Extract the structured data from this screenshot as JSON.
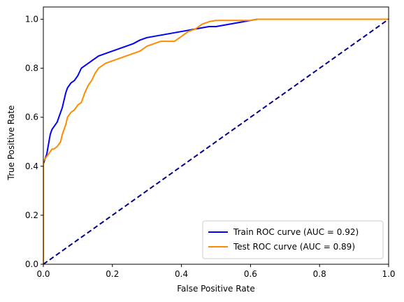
{
  "chart_data": {
    "type": "line",
    "title": "",
    "xlabel": "False Positive Rate",
    "ylabel": "True Positive Rate",
    "xlim": [
      0.0,
      1.0
    ],
    "ylim": [
      0.0,
      1.05
    ],
    "xticks": [
      "0.0",
      "0.2",
      "0.4",
      "0.6",
      "0.8",
      "1.0"
    ],
    "yticks": [
      "0.0",
      "0.2",
      "0.4",
      "0.6",
      "0.8",
      "1.0"
    ],
    "grid": false,
    "legend_position": "lower-right",
    "series": [
      {
        "name": "Train ROC curve (AUC = 0.92)",
        "color": "#0000ff",
        "x": [
          0.0,
          0.0,
          0.005,
          0.01,
          0.015,
          0.02,
          0.025,
          0.03,
          0.035,
          0.04,
          0.045,
          0.05,
          0.055,
          0.06,
          0.065,
          0.07,
          0.075,
          0.08,
          0.09,
          0.1,
          0.11,
          0.12,
          0.13,
          0.14,
          0.15,
          0.16,
          0.17,
          0.18,
          0.2,
          0.22,
          0.24,
          0.26,
          0.28,
          0.3,
          0.32,
          0.34,
          0.36,
          0.38,
          0.4,
          0.42,
          0.44,
          0.46,
          0.48,
          0.5,
          0.52,
          0.54,
          0.56,
          0.58,
          0.6,
          0.62,
          0.64,
          0.7,
          0.8,
          0.9,
          1.0
        ],
        "y": [
          0.0,
          0.41,
          0.43,
          0.45,
          0.49,
          0.53,
          0.55,
          0.56,
          0.57,
          0.58,
          0.6,
          0.62,
          0.64,
          0.67,
          0.7,
          0.72,
          0.73,
          0.74,
          0.75,
          0.77,
          0.8,
          0.81,
          0.82,
          0.83,
          0.84,
          0.85,
          0.855,
          0.86,
          0.87,
          0.88,
          0.89,
          0.9,
          0.915,
          0.925,
          0.93,
          0.935,
          0.94,
          0.945,
          0.95,
          0.955,
          0.96,
          0.965,
          0.97,
          0.97,
          0.975,
          0.98,
          0.985,
          0.99,
          0.995,
          1.0,
          1.0,
          1.0,
          1.0,
          1.0,
          1.0
        ]
      },
      {
        "name": "Test ROC curve (AUC = 0.89)",
        "color": "#ff8c00",
        "x": [
          0.0,
          0.0,
          0.005,
          0.01,
          0.015,
          0.02,
          0.025,
          0.03,
          0.04,
          0.05,
          0.055,
          0.06,
          0.065,
          0.07,
          0.08,
          0.09,
          0.1,
          0.11,
          0.12,
          0.13,
          0.14,
          0.15,
          0.16,
          0.17,
          0.18,
          0.2,
          0.22,
          0.24,
          0.26,
          0.28,
          0.3,
          0.32,
          0.34,
          0.36,
          0.38,
          0.4,
          0.42,
          0.44,
          0.46,
          0.48,
          0.5,
          0.52,
          0.54,
          0.56,
          0.58,
          0.6,
          0.62,
          0.64,
          0.7,
          0.8,
          0.9,
          1.0
        ],
        "y": [
          0.0,
          0.42,
          0.43,
          0.44,
          0.45,
          0.46,
          0.47,
          0.47,
          0.48,
          0.5,
          0.53,
          0.55,
          0.57,
          0.6,
          0.62,
          0.63,
          0.65,
          0.66,
          0.7,
          0.73,
          0.75,
          0.78,
          0.8,
          0.81,
          0.82,
          0.83,
          0.84,
          0.85,
          0.86,
          0.87,
          0.89,
          0.9,
          0.91,
          0.91,
          0.91,
          0.93,
          0.95,
          0.96,
          0.98,
          0.99,
          0.995,
          0.995,
          0.995,
          0.995,
          0.995,
          0.995,
          1.0,
          1.0,
          1.0,
          1.0,
          1.0,
          1.0
        ]
      },
      {
        "name": "",
        "color": "#00008b",
        "dashed": true,
        "x": [
          0.0,
          1.0
        ],
        "y": [
          0.0,
          1.0
        ]
      }
    ]
  }
}
